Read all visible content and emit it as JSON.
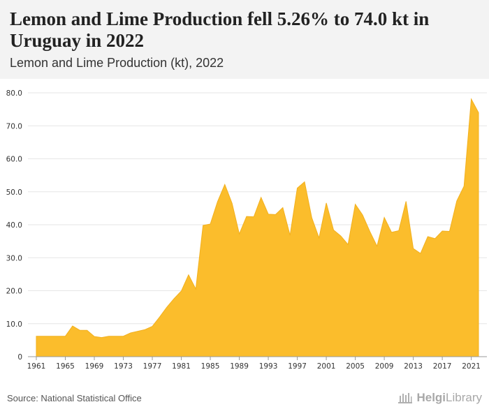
{
  "header": {
    "title": "Lemon and Lime Production fell 5.26% to 74.0 kt in Uruguay in 2022",
    "subtitle": "Lemon and Lime Production (kt), 2022"
  },
  "footer": {
    "source": "Source: National Statistical Office",
    "brand_bold": "Helgi",
    "brand_light": "Library"
  },
  "colors": {
    "area": "#fbbd2c",
    "area_stroke": "#f2b01e",
    "grid": "#e6e6e6",
    "header_bg": "#f3f3f3"
  },
  "chart_data": {
    "type": "area",
    "title": "Lemon and Lime Production (kt), 2022",
    "xlabel": "",
    "ylabel": "",
    "xlim": [
      1961,
      2022
    ],
    "ylim": [
      0,
      80
    ],
    "grid": true,
    "y_ticks": [
      0,
      10,
      20,
      30,
      40,
      50,
      60,
      70,
      80
    ],
    "y_tick_labels": [
      "0",
      "10.0",
      "20.0",
      "30.0",
      "40.0",
      "50.0",
      "60.0",
      "70.0",
      "80.0"
    ],
    "x_ticks": [
      1961,
      1965,
      1969,
      1973,
      1977,
      1981,
      1985,
      1989,
      1993,
      1997,
      2001,
      2005,
      2009,
      2013,
      2017,
      2021
    ],
    "x": [
      1961,
      1962,
      1963,
      1964,
      1965,
      1966,
      1967,
      1968,
      1969,
      1970,
      1971,
      1972,
      1973,
      1974,
      1975,
      1976,
      1977,
      1978,
      1979,
      1980,
      1981,
      1982,
      1983,
      1984,
      1985,
      1986,
      1987,
      1988,
      1989,
      1990,
      1991,
      1992,
      1993,
      1994,
      1995,
      1996,
      1997,
      1998,
      1999,
      2000,
      2001,
      2002,
      2003,
      2004,
      2005,
      2006,
      2007,
      2008,
      2009,
      2010,
      2011,
      2012,
      2013,
      2014,
      2015,
      2016,
      2017,
      2018,
      2019,
      2020,
      2021,
      2022
    ],
    "series": [
      {
        "values": [
          6.2,
          6.2,
          6.2,
          6.2,
          6.2,
          9.3,
          8.0,
          8.0,
          6.1,
          5.8,
          6.2,
          6.2,
          6.2,
          7.2,
          7.7,
          8.2,
          9.2,
          12.0,
          15.0,
          17.6,
          19.9,
          24.8,
          20.5,
          39.8,
          40.2,
          47.0,
          52.2,
          46.5,
          37.2,
          42.5,
          42.4,
          48.3,
          43.2,
          43.1,
          45.2,
          36.8,
          51.1,
          53.0,
          42.1,
          36.0,
          46.6,
          38.4,
          36.6,
          34.0,
          46.2,
          43.0,
          38.0,
          33.5,
          42.2,
          37.7,
          38.2,
          47.1,
          32.8,
          31.3,
          36.4,
          35.8,
          38.1,
          38.0,
          47.2,
          51.7,
          78.1,
          74.0
        ]
      }
    ]
  }
}
